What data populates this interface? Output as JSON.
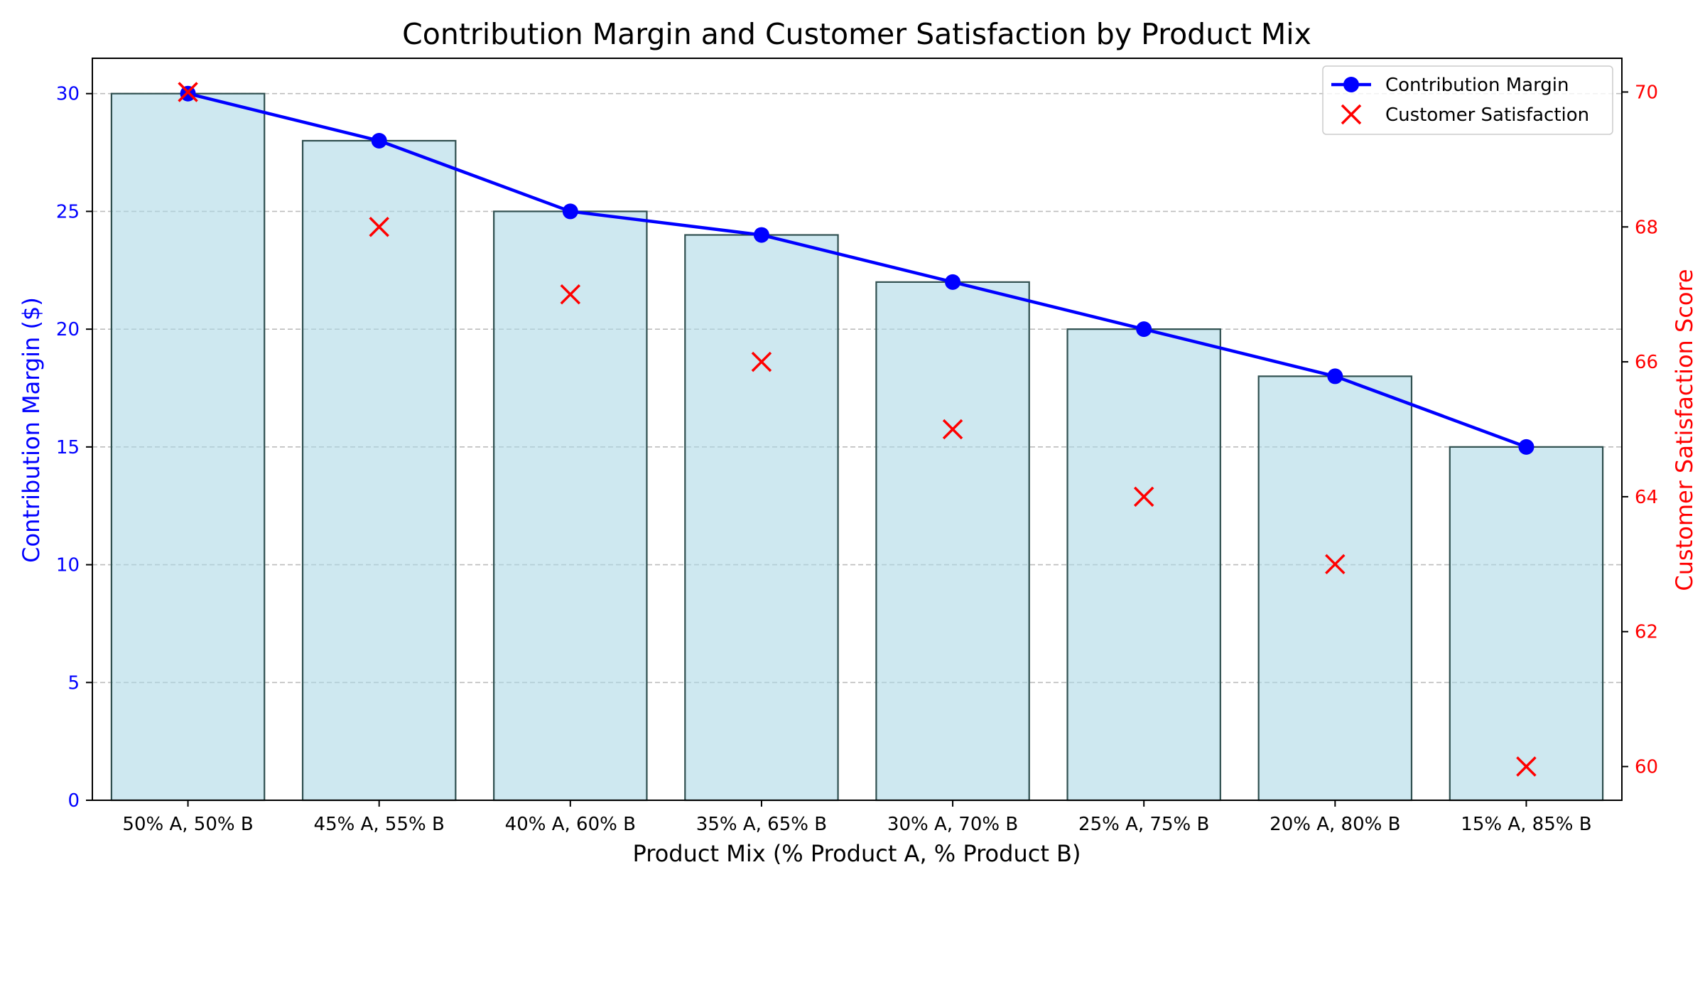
{
  "chart_data": {
    "type": "bar",
    "title": "Contribution Margin and Customer Satisfaction by Product Mix",
    "xlabel": "Product Mix (% Product A, % Product B)",
    "ylabel": "Contribution Margin ($)",
    "y2label": "Customer Satisfaction Score",
    "categories": [
      "50% A, 50% B",
      "45% A, 55% B",
      "40% A, 60% B",
      "35% A, 65% B",
      "30% A, 70% B",
      "25% A, 75% B",
      "20% A, 80% B",
      "15% A, 85% B"
    ],
    "series": [
      {
        "name": "Contribution Margin",
        "kind": "bar+line",
        "axis": "left",
        "values": [
          30,
          28,
          25,
          24,
          22,
          20,
          18,
          15
        ]
      },
      {
        "name": "Customer Satisfaction",
        "kind": "scatter",
        "marker": "x",
        "axis": "right",
        "values": [
          70,
          68,
          67,
          66,
          65,
          64,
          63,
          60
        ]
      }
    ],
    "ylim": [
      0,
      31.5
    ],
    "y2lim": [
      59.5,
      70.5
    ],
    "yticks": [
      0,
      5,
      10,
      15,
      20,
      25,
      30
    ],
    "y2ticks": [
      60,
      62,
      64,
      66,
      68,
      70
    ],
    "grid": "horizontal-dashed",
    "legend_position": "top-right",
    "colors": {
      "bar_fill": "#add8e6",
      "bar_edge": "#2f4f4f",
      "line": "#0000ff",
      "scatter": "#ff0000",
      "left_axis": "#0000ff",
      "right_axis": "#ff0000",
      "grid": "#b0b0b0"
    }
  }
}
